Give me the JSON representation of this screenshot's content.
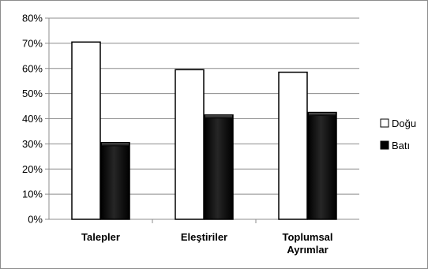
{
  "chart_data": {
    "type": "bar",
    "categories": [
      [
        "Talepler"
      ],
      [
        "Eleştiriler"
      ],
      [
        "Toplumsal",
        "Ayrımlar"
      ]
    ],
    "series": [
      {
        "name": "Doğu",
        "values": [
          70.5,
          59.5,
          58.5
        ],
        "color": "#ffffff"
      },
      {
        "name": "Batı",
        "values": [
          30.5,
          41.5,
          42.5
        ],
        "color": "#000000"
      }
    ],
    "y_tick_labels": [
      "0%",
      "10%",
      "20%",
      "30%",
      "40%",
      "50%",
      "60%",
      "70%",
      "80%"
    ],
    "ylim": [
      0,
      80
    ],
    "y_step": 10,
    "grid": true,
    "legend_position": "right"
  }
}
